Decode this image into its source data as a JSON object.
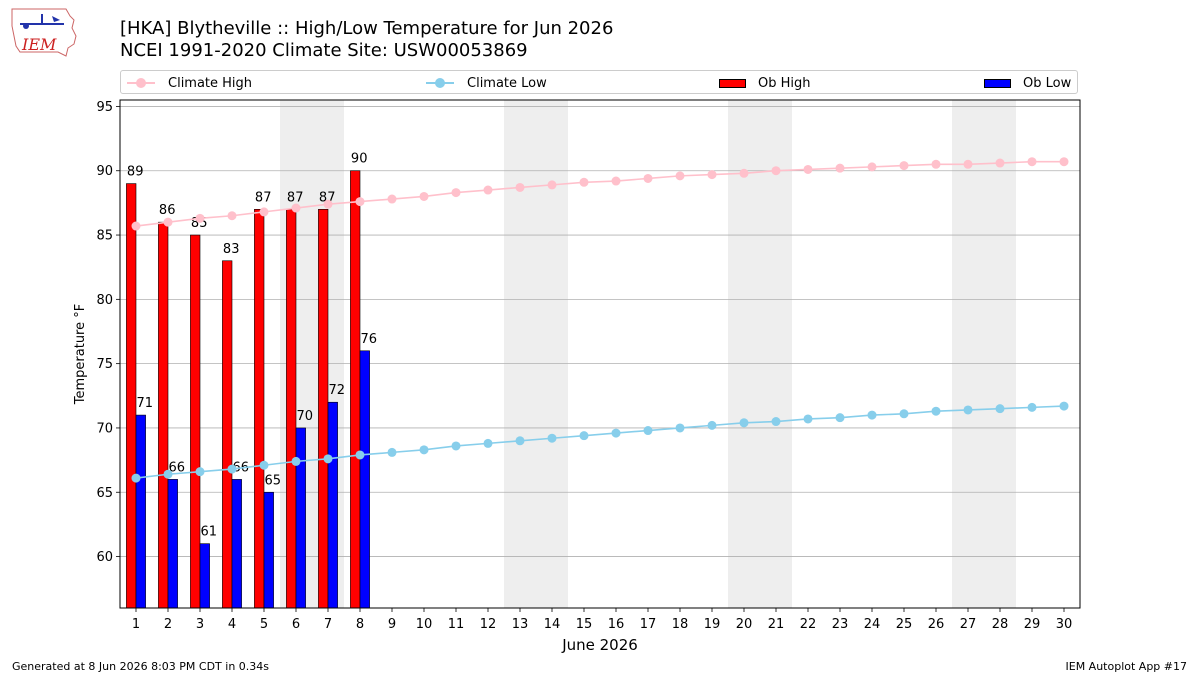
{
  "title_line1": "[HKA] Blytheville :: High/Low Temperature for Jun 2026",
  "title_line2": "NCEI 1991-2020 Climate Site: USW00053869",
  "logo_text": "IEM",
  "footer_left": "Generated at 8 Jun 2026 8:03 PM CDT in 0.34s",
  "footer_right": "IEM Autoplot App #17",
  "legend": {
    "climate_high": "Climate High",
    "climate_low": "Climate Low",
    "ob_high": "Ob High",
    "ob_low": "Ob Low"
  },
  "colors": {
    "ob_high": "#ff0000",
    "ob_low": "#0000ff",
    "climate_high": "#ffc0cb",
    "climate_low": "#87ceeb",
    "weekend_shade": "#eeeeee",
    "grid": "#b0b0b0"
  },
  "chart_data": {
    "type": "bar",
    "xlabel": "June 2026",
    "ylabel": "Temperature °F",
    "xlim": [
      0.5,
      30.5
    ],
    "ylim": [
      56,
      95.5
    ],
    "yticks": [
      60,
      65,
      70,
      75,
      80,
      85,
      90,
      95
    ],
    "grid": "horizontal",
    "legend_position": "top",
    "days": [
      1,
      2,
      3,
      4,
      5,
      6,
      7,
      8,
      9,
      10,
      11,
      12,
      13,
      14,
      15,
      16,
      17,
      18,
      19,
      20,
      21,
      22,
      23,
      24,
      25,
      26,
      27,
      28,
      29,
      30
    ],
    "shaded_days": [
      [
        6,
        7
      ],
      [
        13,
        14
      ],
      [
        20,
        21
      ],
      [
        27,
        28
      ]
    ],
    "series": [
      {
        "name": "Ob High",
        "type": "bar",
        "x": [
          1,
          2,
          3,
          4,
          5,
          6,
          7,
          8
        ],
        "values": [
          89,
          86,
          85,
          83,
          87,
          87,
          87,
          90
        ]
      },
      {
        "name": "Ob Low",
        "type": "bar",
        "x": [
          1,
          2,
          3,
          4,
          5,
          6,
          7,
          8
        ],
        "values": [
          71,
          66,
          61,
          66,
          65,
          70,
          72,
          76
        ]
      },
      {
        "name": "Climate High",
        "type": "line",
        "values": [
          85.7,
          86.0,
          86.3,
          86.5,
          86.8,
          87.1,
          87.4,
          87.6,
          87.8,
          88.0,
          88.3,
          88.5,
          88.7,
          88.9,
          89.1,
          89.2,
          89.4,
          89.6,
          89.7,
          89.8,
          90.0,
          90.1,
          90.2,
          90.3,
          90.4,
          90.5,
          90.5,
          90.6,
          90.7,
          90.7
        ]
      },
      {
        "name": "Climate Low",
        "type": "line",
        "values": [
          66.1,
          66.4,
          66.6,
          66.8,
          67.1,
          67.4,
          67.6,
          67.9,
          68.1,
          68.3,
          68.6,
          68.8,
          69.0,
          69.2,
          69.4,
          69.6,
          69.8,
          70.0,
          70.2,
          70.4,
          70.5,
          70.7,
          70.8,
          71.0,
          71.1,
          71.3,
          71.4,
          71.5,
          71.6,
          71.7
        ]
      }
    ]
  }
}
